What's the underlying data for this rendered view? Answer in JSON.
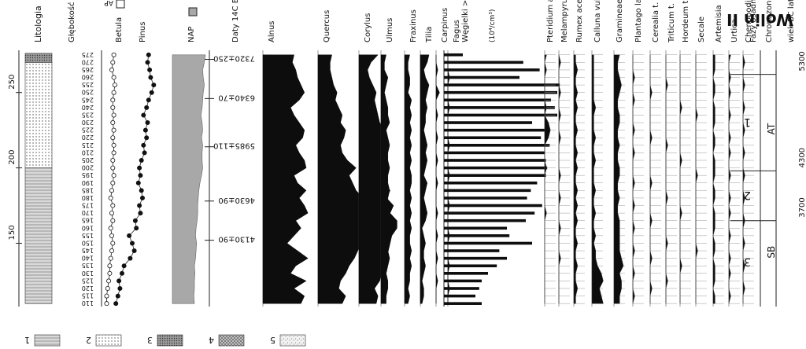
{
  "chart_data": {
    "type": "area",
    "title": "Wolin II",
    "depth_axis": {
      "label": "Głębokość (cm)",
      "values": [
        110,
        115,
        120,
        125,
        130,
        135,
        140,
        145,
        150,
        155,
        160,
        165,
        170,
        175,
        180,
        185,
        190,
        195,
        200,
        205,
        210,
        215,
        220,
        225,
        230,
        235,
        240,
        245,
        250,
        255,
        260,
        265,
        270,
        275
      ],
      "tick_labels": [
        "110",
        "115",
        "120",
        "125",
        "130",
        "135",
        "140",
        "145",
        "150",
        "155",
        "160",
        "165",
        "170",
        "175",
        "180",
        "185",
        "190",
        "195",
        "200",
        "205",
        "210",
        "215",
        "220",
        "225",
        "230",
        "235",
        "240",
        "245",
        "250",
        "255",
        "260",
        "265",
        "270",
        "275"
      ],
      "scale_ticks": [
        "150",
        "200",
        "250"
      ]
    },
    "lithology": {
      "title": "Litologia",
      "legend": [
        {
          "number": "1",
          "pattern": "lines"
        },
        {
          "number": "2",
          "pattern": "dots"
        },
        {
          "number": "3",
          "pattern": "dense"
        },
        {
          "number": "4",
          "pattern": "cross"
        },
        {
          "number": "5",
          "pattern": "speckle"
        }
      ],
      "units": [
        {
          "from": 110,
          "to": 200,
          "pattern": "lines"
        },
        {
          "from": 200,
          "to": 270,
          "pattern": "dots"
        },
        {
          "from": 270,
          "to": 276,
          "pattern": "dense"
        }
      ]
    },
    "ap_curves": {
      "labels": [
        "Betula",
        "Pinus"
      ],
      "legend": [
        {
          "label": "AP",
          "style": "hollow"
        },
        {
          "label": "NAP",
          "style": "gray"
        }
      ],
      "betula": [
        5,
        5,
        6,
        7,
        8,
        8,
        9,
        10,
        11,
        10,
        9,
        11,
        10,
        11,
        9,
        10,
        11,
        12,
        11,
        11,
        12,
        12,
        11,
        12,
        11,
        12,
        11,
        11,
        12,
        13,
        12,
        10,
        11,
        12
      ],
      "pinus": [
        14,
        16,
        18,
        17,
        20,
        22,
        28,
        32,
        30,
        27,
        34,
        33,
        38,
        37,
        40,
        39,
        36,
        38,
        37,
        39,
        42,
        41,
        44,
        43,
        45,
        41,
        44,
        46,
        49,
        51,
        48,
        47,
        45,
        46
      ],
      "nap": [
        40,
        39,
        40,
        40,
        41,
        40,
        42,
        43,
        44,
        42,
        43,
        45,
        46,
        46,
        47,
        48,
        50,
        53,
        55,
        54,
        54,
        55,
        53,
        55,
        54,
        52,
        54,
        55,
        56,
        58,
        56,
        55,
        58,
        60
      ]
    },
    "dates_title": "Daty 14C BP",
    "dates": [
      {
        "depth": 152,
        "label": "4130±90"
      },
      {
        "depth": 178,
        "label": "4630±90"
      },
      {
        "depth": 214,
        "label": "5985±110"
      },
      {
        "depth": 246,
        "label": "6340±70"
      },
      {
        "depth": 272,
        "label": "7320±250"
      }
    ],
    "taxa": [
      {
        "name": "Alnus",
        "values": [
          22,
          24,
          18,
          25,
          16,
          19,
          26,
          20,
          14,
          18,
          22,
          19,
          26,
          24,
          21,
          25,
          20,
          18,
          25,
          24,
          21,
          19,
          23,
          24,
          21,
          18,
          16,
          21,
          24,
          22,
          20,
          19,
          17,
          18
        ]
      },
      {
        "name": "Quercus",
        "values": [
          14,
          16,
          12,
          13,
          16,
          18,
          21,
          23,
          25,
          26,
          27,
          28,
          30,
          28,
          26,
          22,
          20,
          18,
          22,
          17,
          14,
          13,
          15,
          16,
          13,
          14,
          12,
          10,
          11,
          9,
          8,
          7,
          7,
          8
        ]
      },
      {
        "name": "Corylus",
        "values": [
          10,
          11,
          9,
          12,
          13,
          14,
          15,
          17,
          18,
          19,
          22,
          22,
          18,
          20,
          16,
          18,
          15,
          14,
          17,
          14,
          13,
          14,
          13,
          15,
          12,
          11,
          10,
          9,
          10,
          8,
          6,
          5,
          7,
          11
        ]
      },
      {
        "name": "Ulmus",
        "values": [
          3,
          3,
          4,
          4,
          3,
          4,
          5,
          4,
          4,
          3,
          4,
          5,
          5,
          4,
          4,
          5,
          4,
          4,
          5,
          4,
          4,
          5,
          4,
          3,
          5,
          4,
          4,
          3,
          2,
          3,
          4,
          2,
          2,
          3
        ]
      },
      {
        "name": "Fraxinus",
        "values": [
          2,
          3,
          2,
          3,
          3,
          4,
          3,
          4,
          3,
          3,
          4,
          3,
          4,
          3,
          4,
          3,
          4,
          4,
          3,
          4,
          3,
          4,
          3,
          4,
          3,
          4,
          3,
          4,
          2,
          3,
          3,
          2,
          2,
          3
        ]
      },
      {
        "name": "Tilia",
        "values": [
          1,
          2,
          2,
          1,
          2,
          3,
          2,
          2,
          3,
          2,
          1,
          3,
          4,
          3,
          2,
          3,
          4,
          2,
          3,
          4,
          3,
          4,
          3,
          2,
          3,
          3,
          4,
          3,
          4,
          5,
          3,
          2,
          4,
          5
        ]
      },
      {
        "name": "Carpinus",
        "values": [
          0,
          0,
          0,
          1,
          0,
          0,
          1,
          0,
          0,
          1,
          0,
          0,
          1,
          0,
          0,
          0,
          1,
          0,
          0,
          1,
          0,
          0,
          1,
          0,
          0,
          1,
          0,
          0,
          2,
          0,
          0,
          1,
          0,
          0
        ]
      },
      {
        "name": "Fagus",
        "values": [
          0,
          0,
          1,
          0,
          0,
          1,
          0,
          0,
          0,
          1,
          0,
          0,
          0,
          1,
          0,
          0,
          0,
          1,
          0,
          0,
          0,
          1,
          0,
          0,
          0,
          0,
          1,
          0,
          0,
          0,
          1,
          0,
          0,
          0
        ]
      }
    ],
    "concentration": {
      "name": "Węgielki >25μm",
      "unit": "(10⁴/cm³)",
      "values": [
        3,
        2.5,
        2.8,
        3,
        3.5,
        4.2,
        5,
        4.4,
        7,
        5.2,
        5,
        6.5,
        7.2,
        7.8,
        6.6,
        6.9,
        7.4,
        8.1,
        8.2,
        8.1,
        8,
        8.4,
        7.7,
        8.3,
        7,
        9,
        8.8,
        8.5,
        9,
        9.2,
        6,
        7.6,
        6.3,
        1.5
      ]
    },
    "herbs": [
      {
        "name": "Pteridium aquilinum",
        "values": [
          0,
          0,
          0,
          0,
          0,
          0,
          0,
          0,
          0,
          0,
          0,
          0,
          1,
          0,
          0,
          0,
          0,
          0,
          1,
          0,
          0,
          0,
          2,
          3,
          2,
          0,
          1,
          0,
          0,
          0,
          0,
          1,
          0,
          1
        ]
      },
      {
        "name": "Melampyrum",
        "values": [
          0,
          0,
          0,
          0,
          0,
          0,
          1,
          0,
          0,
          0,
          1,
          0,
          0,
          0,
          1,
          0,
          0,
          1,
          0,
          0,
          0,
          0,
          1,
          0,
          0,
          1,
          0,
          0,
          1,
          0,
          0,
          0,
          1,
          0
        ]
      },
      {
        "name": "Rumex acetosella t.",
        "values": [
          1,
          1,
          2,
          1,
          1,
          2,
          1,
          1,
          2,
          1,
          1,
          2,
          1,
          2,
          1,
          2,
          1,
          1,
          2,
          1,
          2,
          1,
          1,
          2,
          1,
          1,
          2,
          1,
          2,
          1,
          1,
          2,
          1,
          1
        ]
      },
      {
        "name": "Calluna vulgaris",
        "values": [
          6,
          5,
          4,
          6,
          5,
          3,
          2,
          2,
          1,
          2,
          1,
          1,
          2,
          1,
          1,
          2,
          1,
          1,
          1,
          2,
          1,
          1,
          2,
          1,
          1,
          1,
          2,
          1,
          1,
          1,
          1,
          1,
          1,
          1
        ]
      },
      {
        "name": "Gramineae",
        "values": [
          3,
          3,
          4,
          4,
          3,
          5,
          4,
          3,
          3,
          3,
          3,
          3,
          2,
          2,
          3,
          2,
          2,
          3,
          3,
          2,
          2,
          3,
          2,
          2,
          3,
          3,
          2,
          2,
          3,
          4,
          3,
          2,
          2,
          3
        ]
      },
      {
        "name": "Plantago lanceolata",
        "values": [
          0,
          1,
          0,
          0,
          1,
          0,
          0,
          1,
          0,
          0,
          1,
          0,
          0,
          1,
          0,
          0,
          1,
          0,
          0,
          0,
          1,
          0,
          0,
          1,
          0,
          0,
          0,
          1,
          0,
          0,
          1,
          0,
          0,
          0
        ]
      },
      {
        "name": "Cerealia t.",
        "values": [
          0,
          0,
          1,
          0,
          0,
          0,
          1,
          0,
          0,
          0,
          0,
          1,
          0,
          0,
          0,
          0,
          1,
          0,
          0,
          0,
          0,
          0,
          1,
          0,
          0,
          0,
          0,
          0,
          1,
          0,
          0,
          0,
          0,
          0
        ]
      },
      {
        "name": "Triticum t.",
        "values": [
          0,
          0,
          0,
          1,
          0,
          0,
          0,
          0,
          1,
          0,
          0,
          0,
          0,
          0,
          1,
          0,
          0,
          0,
          0,
          0,
          0,
          1,
          0,
          0,
          0,
          0,
          0,
          0,
          0,
          1,
          0,
          0,
          0,
          0
        ]
      },
      {
        "name": "Hordeum t.",
        "values": [
          0,
          0,
          0,
          0,
          0,
          1,
          0,
          0,
          0,
          0,
          0,
          0,
          1,
          0,
          0,
          0,
          0,
          0,
          0,
          1,
          0,
          0,
          0,
          0,
          0,
          0,
          1,
          0,
          0,
          0,
          0,
          0,
          0,
          0
        ]
      },
      {
        "name": "Secale",
        "values": [
          0,
          0,
          0,
          0,
          0,
          0,
          0,
          1,
          0,
          0,
          0,
          0,
          0,
          0,
          0,
          0,
          0,
          1,
          0,
          0,
          0,
          0,
          0,
          0,
          0,
          1,
          0,
          0,
          0,
          0,
          0,
          0,
          0,
          0
        ]
      },
      {
        "name": "Artemisia",
        "values": [
          1,
          1,
          0,
          1,
          1,
          1,
          0,
          1,
          1,
          0,
          1,
          1,
          1,
          0,
          1,
          1,
          0,
          1,
          1,
          1,
          0,
          1,
          1,
          0,
          1,
          1,
          1,
          0,
          1,
          1,
          0,
          1,
          1,
          1
        ]
      },
      {
        "name": "Urtica",
        "values": [
          0,
          1,
          0,
          0,
          1,
          0,
          1,
          0,
          0,
          1,
          0,
          0,
          1,
          0,
          1,
          0,
          0,
          1,
          0,
          0,
          1,
          0,
          1,
          0,
          0,
          1,
          0,
          0,
          1,
          0,
          1,
          0,
          0,
          1
        ]
      },
      {
        "name": "Chenopodiaceae",
        "values": [
          0,
          0,
          1,
          0,
          0,
          1,
          0,
          0,
          1,
          0,
          0,
          1,
          0,
          0,
          1,
          0,
          0,
          1,
          0,
          0,
          1,
          0,
          0,
          1,
          0,
          0,
          1,
          0,
          0,
          1,
          0,
          0,
          1,
          0
        ]
      }
    ],
    "zones": {
      "faze_title": "Fazy osadnicze",
      "chrono_title": "Chronozona",
      "age_title": "wiek BC lat",
      "chrono_label": "SB",
      "faze": [
        {
          "label": "3",
          "from": 110,
          "to": 165
        },
        {
          "label": "2",
          "from": 165,
          "to": 198
        },
        {
          "label": "1",
          "from": 198,
          "to": 262
        }
      ],
      "boundaries": [
        {
          "depth": 165,
          "label": "3700"
        },
        {
          "depth": 198,
          "label": "4300"
        },
        {
          "depth": 262,
          "label": "5300"
        }
      ],
      "at_label": "AT"
    }
  }
}
